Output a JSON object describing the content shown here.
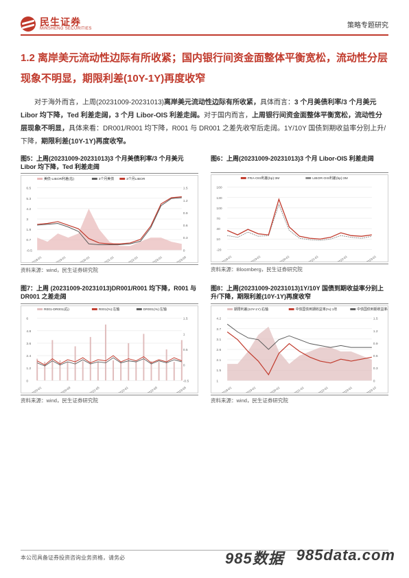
{
  "header": {
    "logo_cn": "民生证券",
    "logo_en": "MINSHENG SECURITIES",
    "right": "策略专题研究"
  },
  "section_title": "1.2 离岸美元流动性边际有所收紧；国内银行间资金面整体平衡宽松，流动性分层现象不明显，期限利差(10Y-1Y)再度收窄",
  "body": {
    "p1_prefix": "对于海外而言，上周(20231009-20231013)",
    "p1_bold1": "离岸美元流动性边际有所收紧，",
    "p1_mid1": "具体而言：",
    "p1_bold2": "3 个月美债利率/3 个月美元 Libor 均下降，Ted 利差走阔，3 个月 Libor-OIS 利差走阔。",
    "p1_mid2": "对于国内而言，",
    "p1_bold3": "上周银行间资金面整体平衡宽松，流动性分层现象不明显，",
    "p1_mid3": "具体来看：DR001/R001 均下降，R001 与 DR001 之差先收窄后走阔。1Y/10Y 国债到期收益率分别上升/下降，",
    "p1_bold4": "期限利差(10Y-1Y)再度收窄。"
  },
  "charts": {
    "c5": {
      "title": "图5：上周(20231009-20231013)3 个月美债利率/3 个月美元 Libor 均下降，Ted 利差走阔",
      "src": "资料来源：wind，民生证券研究院",
      "legend": [
        "美债-LIBOR利差(右)",
        "3个月美债",
        "3个月LIBOR"
      ],
      "colors": {
        "area": "#e8b8b8",
        "l1": "#5a5a5a",
        "l2": "#c0392b",
        "grid": "#e0e0e0"
      },
      "ylim_left": [
        -0.5,
        6.5
      ],
      "ylim_right": [
        0,
        1.5
      ],
      "xlim": [
        "2018-01",
        "2023-09"
      ],
      "line1": [
        2.3,
        2.4,
        2.5,
        2.1,
        1.6,
        0.2,
        0.1,
        0.1,
        0.1,
        0.2,
        0.5,
        2.0,
        4.5,
        5.3,
        5.4
      ],
      "line2": [
        2.4,
        2.5,
        2.7,
        2.3,
        1.9,
        0.8,
        0.3,
        0.2,
        0.2,
        0.3,
        0.7,
        2.2,
        4.7,
        5.4,
        5.5
      ],
      "area": [
        0.3,
        0.2,
        0.4,
        0.3,
        0.4,
        1.0,
        0.5,
        0.2,
        0.1,
        0.1,
        0.2,
        0.3,
        0.3,
        0.2,
        0.15
      ]
    },
    "c6": {
      "title": "图6：上周(20231009-20231013)3 个月 Libor-OIS 利差走阔",
      "src": "资料来源：Bloomberg，民生证券研究院",
      "legend": [
        "FRA-OIS利差(bp):3M",
        "LIBOR-OIS利差(bp):3M"
      ],
      "colors": {
        "l1": "#c0392b",
        "l2": "#888888",
        "grid": "#e0e0e0"
      },
      "ylim": [
        -20,
        160
      ],
      "xlim": [
        "2018-01",
        "2023-03"
      ],
      "line1": [
        35,
        22,
        38,
        25,
        22,
        125,
        45,
        18,
        12,
        10,
        15,
        28,
        20,
        18,
        22
      ],
      "line2": [
        20,
        15,
        30,
        18,
        20,
        110,
        35,
        12,
        8,
        6,
        10,
        20,
        15,
        12,
        18
      ]
    },
    "c7": {
      "title": "图7：上周 (20231009-20231013)DR001/R001  均下降，R001 与 DR001 之差走阔",
      "src": "资料来源：wind，民生证券研究院",
      "legend": [
        "R001-DR001(右)",
        "R001(%):左轴",
        "DR001(%):左轴"
      ],
      "colors": {
        "area": "#e0bcbc",
        "l1": "#c0392b",
        "l2": "#5a5a5a",
        "grid": "#e0e0e0"
      },
      "ylim_left": [
        0,
        6
      ],
      "ylim_right": [
        -0.5,
        1.5
      ],
      "xlim": [
        "2020-01",
        "2023-09"
      ],
      "spikes": [
        0.2,
        0.1,
        0.8,
        0.15,
        0.1,
        0.6,
        0.12,
        0.9,
        0.1,
        1.3,
        0.15,
        0.1,
        0.7,
        0.1,
        1.0,
        0.12,
        0.1,
        0.5,
        0.1,
        0.8
      ],
      "base1": [
        1.9,
        1.5,
        2.1,
        1.6,
        2.0,
        1.8,
        2.2,
        1.7,
        2.0,
        1.9,
        2.4,
        1.8,
        2.1,
        1.9,
        2.3,
        1.7,
        2.0,
        1.8,
        2.2,
        1.9
      ],
      "base2": [
        1.7,
        1.4,
        1.9,
        1.5,
        1.8,
        1.6,
        2.0,
        1.6,
        1.8,
        1.7,
        2.2,
        1.7,
        1.9,
        1.8,
        2.1,
        1.6,
        1.9,
        1.7,
        2.0,
        1.8
      ]
    },
    "c8": {
      "title": "图8：上周(20231009-20231013)1Y/10Y 国债到期收益率分别上升/下降，期限利差(10Y-1Y)再度收窄",
      "src": "资料来源：wind，民生证券研究院",
      "legend": [
        "期限利差(10Y-1Y):右轴",
        "中债国债到期收益率(%):1年",
        "中债国债到期收益率(%):10年"
      ],
      "colors": {
        "area": "#e0bcbc",
        "l1": "#c0392b",
        "l2": "#5a5a5a",
        "grid": "#e0e0e0"
      },
      "ylim_left": [
        1.0,
        4.2
      ],
      "ylim_right": [
        0,
        1.5
      ],
      "xlim": [
        "2018-01",
        "2023-10"
      ],
      "line1": [
        3.5,
        3.1,
        2.5,
        2.0,
        1.3,
        2.4,
        2.9,
        2.5,
        2.2,
        2.0,
        1.9,
        2.1,
        2.0,
        2.1,
        2.2
      ],
      "line2": [
        3.9,
        3.5,
        3.2,
        3.1,
        2.6,
        3.1,
        3.3,
        3.1,
        2.9,
        2.8,
        2.7,
        2.8,
        2.7,
        2.7,
        2.7
      ],
      "area": [
        0.4,
        0.4,
        0.7,
        1.1,
        1.3,
        0.7,
        0.4,
        0.6,
        0.7,
        0.8,
        0.8,
        0.7,
        0.7,
        0.6,
        0.5
      ]
    }
  },
  "watermark": {
    "left": "985数据",
    "right": "985data.com"
  },
  "footer": "本公司具备证券投资咨询业务资格，请务必"
}
